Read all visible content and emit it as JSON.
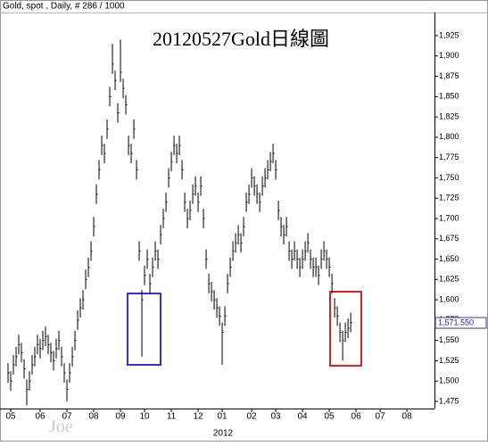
{
  "chart_data": {
    "type": "ohlc",
    "header": "Gold, spot , Daily, # 286 / 1000",
    "title": "20120527Gold日線圖",
    "x_title": "2012",
    "watermark": "Joe",
    "color": "#000000",
    "xlim": [
      0,
      162.3
    ],
    "ylim": [
      1466.2,
      1953.5
    ],
    "xticks": [
      {
        "value": 4,
        "label": "05"
      },
      {
        "value": 15,
        "label": "06"
      },
      {
        "value": 25,
        "label": "07"
      },
      {
        "value": 35,
        "label": "08"
      },
      {
        "value": 45,
        "label": "09"
      },
      {
        "value": 54,
        "label": "10"
      },
      {
        "value": 64,
        "label": "11"
      },
      {
        "value": 74,
        "label": "12"
      },
      {
        "value": 83,
        "label": "01"
      },
      {
        "value": 94,
        "label": "02"
      },
      {
        "value": 103,
        "label": "03"
      },
      {
        "value": 113,
        "label": "04"
      },
      {
        "value": 123,
        "label": "05"
      },
      {
        "value": 133,
        "label": "06"
      },
      {
        "value": 142,
        "label": "07"
      },
      {
        "value": 152,
        "label": "08"
      }
    ],
    "yticks": [
      {
        "value": 1475,
        "label": "1,475"
      },
      {
        "value": 1500,
        "label": "1,500"
      },
      {
        "value": 1525,
        "label": "1,525"
      },
      {
        "value": 1550,
        "label": "1,550"
      },
      {
        "value": 1575,
        "label": "1,575"
      },
      {
        "value": 1600,
        "label": "1,600"
      },
      {
        "value": 1625,
        "label": "1,625"
      },
      {
        "value": 1650,
        "label": "1,650"
      },
      {
        "value": 1675,
        "label": "1,675"
      },
      {
        "value": 1700,
        "label": "1,700"
      },
      {
        "value": 1725,
        "label": "1,725"
      },
      {
        "value": 1750,
        "label": "1,750"
      },
      {
        "value": 1775,
        "label": "1,775"
      },
      {
        "value": 1800,
        "label": "1,800"
      },
      {
        "value": 1825,
        "label": "1,825"
      },
      {
        "value": 1850,
        "label": "1,850"
      },
      {
        "value": 1875,
        "label": "1,875"
      },
      {
        "value": 1900,
        "label": "1,900"
      },
      {
        "value": 1925,
        "label": "1,925"
      }
    ],
    "last_price": {
      "value": 1571.55,
      "label": "1,571.550"
    },
    "x": [
      3,
      4,
      5,
      6,
      7,
      8,
      9,
      10,
      11,
      12,
      13,
      14,
      15,
      16,
      17,
      18,
      19,
      20,
      21,
      22,
      23,
      24,
      25,
      26,
      27,
      28,
      29,
      30,
      31,
      32,
      33,
      34,
      35,
      36,
      37,
      38,
      39,
      40,
      41,
      42,
      43,
      44,
      45,
      46,
      47,
      48,
      49,
      50,
      51,
      52,
      53,
      54,
      55,
      56,
      57,
      58,
      59,
      60,
      61,
      62,
      63,
      64,
      65,
      66,
      67,
      68,
      69,
      70,
      71,
      72,
      73,
      74,
      75,
      76,
      77,
      78,
      79,
      80,
      81,
      82,
      83,
      84,
      85,
      86,
      87,
      88,
      89,
      90,
      91,
      92,
      93,
      94,
      95,
      96,
      97,
      98,
      99,
      100,
      101,
      102,
      103,
      104,
      105,
      106,
      107,
      108,
      109,
      110,
      111,
      112,
      113,
      114,
      115,
      116,
      117,
      118,
      119,
      120,
      121,
      122,
      123,
      124,
      125,
      126,
      127,
      128,
      129,
      130,
      131
    ],
    "high": [
      1522,
      1512,
      1532,
      1542,
      1557,
      1547,
      1527,
      1502,
      1512,
      1532,
      1542,
      1557,
      1552,
      1562,
      1567,
      1557,
      1547,
      1537,
      1552,
      1562,
      1542,
      1522,
      1502,
      1522,
      1542,
      1562,
      1587,
      1602,
      1612,
      1637,
      1652,
      1672,
      1702,
      1742,
      1772,
      1802,
      1792,
      1822,
      1862,
      1915,
      1882,
      1842,
      1920,
      1872,
      1852,
      1802,
      1792,
      1822,
      1772,
      1672,
      1612,
      1642,
      1662,
      1632,
      1652,
      1672,
      1662,
      1692,
      1712,
      1732,
      1762,
      1782,
      1802,
      1792,
      1802,
      1772,
      1732,
      1712,
      1722,
      1742,
      1752,
      1732,
      1752,
      1712,
      1662,
      1632,
      1622,
      1612,
      1602,
      1592,
      1572,
      1592,
      1632,
      1652,
      1672,
      1682,
      1692,
      1682,
      1702,
      1732,
      1742,
      1762,
      1752,
      1742,
      1732,
      1752,
      1762,
      1772,
      1782,
      1792,
      1772,
      1722,
      1702,
      1692,
      1702,
      1672,
      1662,
      1672,
      1662,
      1652,
      1662,
      1672,
      1682,
      1662,
      1652,
      1652,
      1642,
      1662,
      1672,
      1662,
      1652,
      1632,
      1602,
      1592,
      1572,
      1562,
      1572,
      1577,
      1584
    ],
    "low": [
      1498,
      1488,
      1508,
      1518,
      1533,
      1523,
      1503,
      1470,
      1488,
      1508,
      1518,
      1533,
      1528,
      1538,
      1543,
      1533,
      1523,
      1513,
      1528,
      1538,
      1518,
      1498,
      1475,
      1498,
      1518,
      1538,
      1563,
      1578,
      1588,
      1613,
      1628,
      1648,
      1678,
      1718,
      1748,
      1778,
      1768,
      1798,
      1838,
      1878,
      1858,
      1818,
      1868,
      1848,
      1828,
      1778,
      1768,
      1798,
      1748,
      1648,
      1530,
      1618,
      1638,
      1608,
      1628,
      1648,
      1638,
      1668,
      1688,
      1708,
      1738,
      1758,
      1778,
      1768,
      1778,
      1748,
      1708,
      1688,
      1698,
      1718,
      1728,
      1708,
      1728,
      1688,
      1638,
      1608,
      1598,
      1588,
      1578,
      1568,
      1520,
      1568,
      1608,
      1628,
      1648,
      1658,
      1668,
      1658,
      1678,
      1708,
      1718,
      1738,
      1728,
      1718,
      1708,
      1728,
      1738,
      1748,
      1758,
      1768,
      1748,
      1698,
      1678,
      1668,
      1678,
      1648,
      1638,
      1648,
      1638,
      1628,
      1638,
      1648,
      1658,
      1638,
      1628,
      1628,
      1618,
      1638,
      1648,
      1638,
      1628,
      1608,
      1578,
      1568,
      1548,
      1525,
      1548,
      1553,
      1560
    ],
    "close": [
      1510,
      1500,
      1520,
      1530,
      1545,
      1535,
      1515,
      1490,
      1500,
      1520,
      1530,
      1545,
      1540,
      1550,
      1555,
      1545,
      1535,
      1525,
      1540,
      1550,
      1530,
      1510,
      1490,
      1510,
      1530,
      1550,
      1575,
      1590,
      1600,
      1625,
      1640,
      1660,
      1690,
      1730,
      1760,
      1790,
      1780,
      1810,
      1850,
      1890,
      1870,
      1830,
      1880,
      1860,
      1840,
      1790,
      1780,
      1810,
      1760,
      1660,
      1600,
      1630,
      1650,
      1620,
      1640,
      1660,
      1650,
      1680,
      1700,
      1720,
      1750,
      1770,
      1790,
      1780,
      1790,
      1760,
      1720,
      1700,
      1710,
      1730,
      1740,
      1720,
      1740,
      1700,
      1650,
      1620,
      1610,
      1600,
      1590,
      1580,
      1560,
      1580,
      1620,
      1640,
      1660,
      1670,
      1680,
      1670,
      1690,
      1720,
      1730,
      1750,
      1740,
      1730,
      1720,
      1740,
      1750,
      1760,
      1770,
      1780,
      1760,
      1710,
      1690,
      1680,
      1690,
      1660,
      1650,
      1660,
      1650,
      1640,
      1650,
      1660,
      1670,
      1650,
      1640,
      1640,
      1630,
      1650,
      1660,
      1650,
      1640,
      1620,
      1590,
      1580,
      1560,
      1550,
      1560,
      1565,
      1572
    ]
  }
}
